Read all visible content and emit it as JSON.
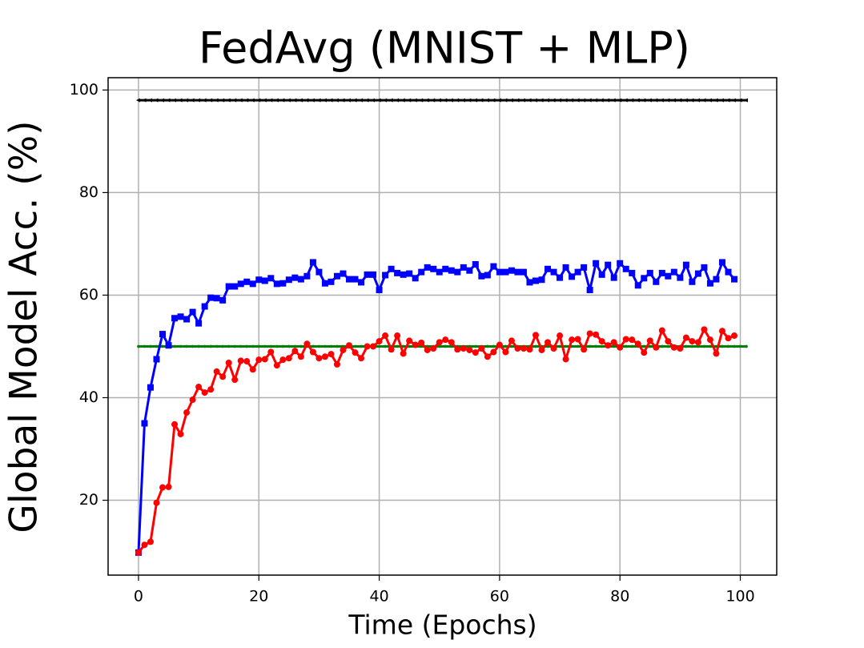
{
  "chart_data": {
    "type": "line",
    "title": "FedAvg (MNIST + MLP)",
    "xlabel": "Time (Epochs)",
    "ylabel": "Global Model Acc. (%)",
    "xlim": [
      -5.05,
      106.05
    ],
    "ylim": [
      5.4,
      102.4
    ],
    "xticks": [
      0,
      20,
      40,
      60,
      80,
      100
    ],
    "yticks": [
      20,
      40,
      60,
      80,
      100
    ],
    "grid": true,
    "series": [
      {
        "color": "#000000",
        "marker": "triangle-left",
        "x": [
          0,
          1,
          2,
          3,
          4,
          5,
          6,
          7,
          8,
          9,
          10,
          11,
          12,
          13,
          14,
          15,
          16,
          17,
          18,
          19,
          20,
          21,
          22,
          23,
          24,
          25,
          26,
          27,
          28,
          29,
          30,
          31,
          32,
          33,
          34,
          35,
          36,
          37,
          38,
          39,
          40,
          41,
          42,
          43,
          44,
          45,
          46,
          47,
          48,
          49,
          50,
          51,
          52,
          53,
          54,
          55,
          56,
          57,
          58,
          59,
          60,
          61,
          62,
          63,
          64,
          65,
          66,
          67,
          68,
          69,
          70,
          71,
          72,
          73,
          74,
          75,
          76,
          77,
          78,
          79,
          80,
          81,
          82,
          83,
          84,
          85,
          86,
          87,
          88,
          89,
          90,
          91,
          92,
          93,
          94,
          95,
          96,
          97,
          98,
          99,
          100,
          101
        ],
        "values": [
          98,
          98,
          98,
          98,
          98,
          98,
          98,
          98,
          98,
          98,
          98,
          98,
          98,
          98,
          98,
          98,
          98,
          98,
          98,
          98,
          98,
          98,
          98,
          98,
          98,
          98,
          98,
          98,
          98,
          98,
          98,
          98,
          98,
          98,
          98,
          98,
          98,
          98,
          98,
          98,
          98,
          98,
          98,
          98,
          98,
          98,
          98,
          98,
          98,
          98,
          98,
          98,
          98,
          98,
          98,
          98,
          98,
          98,
          98,
          98,
          98,
          98,
          98,
          98,
          98,
          98,
          98,
          98,
          98,
          98,
          98,
          98,
          98,
          98,
          98,
          98,
          98,
          98,
          98,
          98,
          98,
          98,
          98,
          98,
          98,
          98,
          98,
          98,
          98,
          98,
          98,
          98,
          98,
          98,
          98,
          98,
          98,
          98,
          98,
          98,
          98,
          98
        ]
      },
      {
        "color": "#008000",
        "marker": "dot",
        "x": [
          0,
          1,
          2,
          3,
          4,
          5,
          6,
          7,
          8,
          9,
          10,
          11,
          12,
          13,
          14,
          15,
          16,
          17,
          18,
          19,
          20,
          21,
          22,
          23,
          24,
          25,
          26,
          27,
          28,
          29,
          30,
          31,
          32,
          33,
          34,
          35,
          36,
          37,
          38,
          39,
          40,
          41,
          42,
          43,
          44,
          45,
          46,
          47,
          48,
          49,
          50,
          51,
          52,
          53,
          54,
          55,
          56,
          57,
          58,
          59,
          60,
          61,
          62,
          63,
          64,
          65,
          66,
          67,
          68,
          69,
          70,
          71,
          72,
          73,
          74,
          75,
          76,
          77,
          78,
          79,
          80,
          81,
          82,
          83,
          84,
          85,
          86,
          87,
          88,
          89,
          90,
          91,
          92,
          93,
          94,
          95,
          96,
          97,
          98,
          99,
          100,
          101
        ],
        "values": [
          50,
          50,
          50,
          50,
          50,
          50,
          50,
          50,
          50,
          50,
          50,
          50,
          50,
          50,
          50,
          50,
          50,
          50,
          50,
          50,
          50,
          50,
          50,
          50,
          50,
          50,
          50,
          50,
          50,
          50,
          50,
          50,
          50,
          50,
          50,
          50,
          50,
          50,
          50,
          50,
          50,
          50,
          50,
          50,
          50,
          50,
          50,
          50,
          50,
          50,
          50,
          50,
          50,
          50,
          50,
          50,
          50,
          50,
          50,
          50,
          50,
          50,
          50,
          50,
          50,
          50,
          50,
          50,
          50,
          50,
          50,
          50,
          50,
          50,
          50,
          50,
          50,
          50,
          50,
          50,
          50,
          50,
          50,
          50,
          50,
          50,
          50,
          50,
          50,
          50,
          50,
          50,
          50,
          50,
          50,
          50,
          50,
          50,
          50,
          50,
          50,
          50
        ]
      },
      {
        "color": "#0000ff",
        "marker": "square",
        "x": [
          0,
          1,
          2,
          3,
          4,
          5,
          6,
          7,
          8,
          9,
          10,
          11,
          12,
          13,
          14,
          15,
          16,
          17,
          18,
          19,
          20,
          21,
          22,
          23,
          24,
          25,
          26,
          27,
          28,
          29,
          30,
          31,
          32,
          33,
          34,
          35,
          36,
          37,
          38,
          39,
          40,
          41,
          42,
          43,
          44,
          45,
          46,
          47,
          48,
          49,
          50,
          51,
          52,
          53,
          54,
          55,
          56,
          57,
          58,
          59,
          60,
          61,
          62,
          63,
          64,
          65,
          66,
          67,
          68,
          69,
          70,
          71,
          72,
          73,
          74,
          75,
          76,
          77,
          78,
          79,
          80,
          81,
          82,
          83,
          84,
          85,
          86,
          87,
          88,
          89,
          90,
          91,
          92,
          93,
          94,
          95,
          96,
          97,
          98,
          99
        ],
        "values": [
          9.8,
          35,
          42,
          47.5,
          52.4,
          50.2,
          55.5,
          55.8,
          55.3,
          56.7,
          54.5,
          57.8,
          59.5,
          59.4,
          59,
          61.7,
          61.7,
          62.2,
          62.6,
          62.2,
          63,
          62.8,
          63.3,
          62.2,
          62.3,
          63,
          63.4,
          63.1,
          63.7,
          66.4,
          64.5,
          62.3,
          62.6,
          63.7,
          64.2,
          63.1,
          63.1,
          62.5,
          64,
          64,
          61,
          63.9,
          65.1,
          64.3,
          64,
          64.2,
          63.3,
          64.5,
          65.4,
          65.1,
          64.5,
          65.1,
          64.8,
          64.5,
          65.4,
          64.8,
          66,
          63.7,
          63.9,
          65.6,
          64.5,
          64.5,
          64.8,
          64.5,
          64.5,
          62.5,
          62.8,
          63,
          65.1,
          64.5,
          63.4,
          65.4,
          63.6,
          64.5,
          65.4,
          61,
          66.2,
          64,
          65.9,
          63.4,
          66.2,
          65.1,
          64.3,
          61.9,
          63.3,
          64.3,
          62.6,
          64.3,
          63.7,
          64.5,
          63.4,
          65.9,
          62.6,
          64.2,
          65.4,
          62.3,
          63.1,
          66.4,
          64.5,
          63.1
        ]
      },
      {
        "color": "#ff0000",
        "marker": "circle",
        "x": [
          0,
          1,
          2,
          3,
          4,
          5,
          6,
          7,
          8,
          9,
          10,
          11,
          12,
          13,
          14,
          15,
          16,
          17,
          18,
          19,
          20,
          21,
          22,
          23,
          24,
          25,
          26,
          27,
          28,
          29,
          30,
          31,
          32,
          33,
          34,
          35,
          36,
          37,
          38,
          39,
          40,
          41,
          42,
          43,
          44,
          45,
          46,
          47,
          48,
          49,
          50,
          51,
          52,
          53,
          54,
          55,
          56,
          57,
          58,
          59,
          60,
          61,
          62,
          63,
          64,
          65,
          66,
          67,
          68,
          69,
          70,
          71,
          72,
          73,
          74,
          75,
          76,
          77,
          78,
          79,
          80,
          81,
          82,
          83,
          84,
          85,
          86,
          87,
          88,
          89,
          90,
          91,
          92,
          93,
          94,
          95,
          96,
          97,
          98,
          99
        ],
        "values": [
          9.8,
          11.3,
          11.9,
          19.5,
          22.5,
          22.6,
          34.8,
          32.9,
          37.1,
          39.6,
          42.1,
          41,
          41.6,
          45.1,
          44.1,
          46.8,
          43.5,
          47.2,
          47.1,
          45.5,
          47.4,
          47.5,
          48.9,
          46.3,
          47.4,
          47.7,
          49.1,
          48,
          50.5,
          48.9,
          47.7,
          48,
          48.5,
          46.5,
          49.3,
          50.2,
          48.8,
          47.7,
          50,
          50,
          51,
          52.1,
          49.4,
          52.1,
          48.6,
          51.1,
          50.3,
          50.7,
          49.3,
          49.6,
          50.8,
          51.3,
          50.8,
          49.4,
          49.6,
          49.3,
          48.8,
          49.6,
          48,
          48.9,
          50.3,
          48.9,
          51.1,
          49.6,
          49.6,
          49.4,
          52.2,
          49.3,
          50.8,
          49.6,
          52.1,
          47.5,
          51.3,
          51.4,
          49.4,
          52.5,
          52.3,
          51,
          50.2,
          50.8,
          49.8,
          51.4,
          51.3,
          50.5,
          48.8,
          51.1,
          49.8,
          53.1,
          51,
          49.8,
          49.6,
          51.7,
          51,
          50.8,
          53.3,
          51.3,
          48.6,
          53,
          51.6,
          52.1
        ]
      }
    ]
  }
}
